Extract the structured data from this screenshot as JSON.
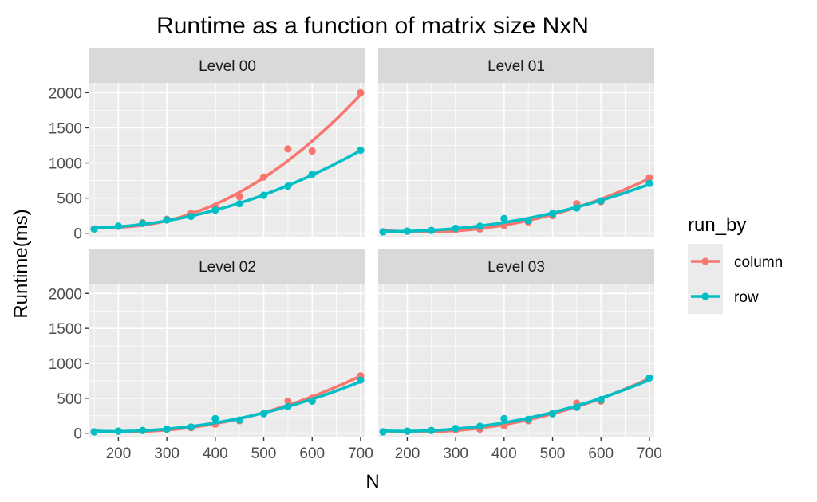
{
  "chart_data": {
    "type": "line",
    "title": "Runtime as a function of matrix size NxN",
    "xlabel": "N",
    "ylabel": "Runtime(ms)",
    "xlim": [
      140,
      710
    ],
    "ylim": [
      -60,
      2140
    ],
    "x_ticks": [
      200,
      300,
      400,
      500,
      600,
      700
    ],
    "y_ticks": [
      0,
      500,
      1000,
      1500,
      2000
    ],
    "grid": true,
    "legend": {
      "title": "run_by",
      "position": "right"
    },
    "facet_layout": [
      2,
      2
    ],
    "facets": [
      {
        "label": "Level 00",
        "series": [
          {
            "name": "column",
            "color": "#F8766D",
            "x": [
              150,
              200,
              250,
              300,
              350,
              400,
              450,
              500,
              550,
              600,
              700
            ],
            "y": [
              60,
              100,
              150,
              200,
              280,
              370,
              520,
              800,
              1200,
              1170,
              2000
            ]
          },
          {
            "name": "row",
            "color": "#00BFC4",
            "x": [
              150,
              200,
              250,
              300,
              350,
              400,
              450,
              500,
              550,
              600,
              700
            ],
            "y": [
              60,
              100,
              140,
              190,
              240,
              330,
              420,
              540,
              670,
              840,
              1180
            ]
          }
        ]
      },
      {
        "label": "Level 01",
        "series": [
          {
            "name": "column",
            "color": "#F8766D",
            "x": [
              150,
              200,
              250,
              300,
              350,
              400,
              450,
              500,
              550,
              600,
              700
            ],
            "y": [
              20,
              30,
              40,
              50,
              60,
              110,
              160,
              250,
              420,
              450,
              790
            ]
          },
          {
            "name": "row",
            "color": "#00BFC4",
            "x": [
              150,
              200,
              250,
              300,
              350,
              400,
              450,
              500,
              550,
              600,
              700
            ],
            "y": [
              20,
              30,
              40,
              70,
              100,
              210,
              180,
              280,
              360,
              460,
              710
            ]
          }
        ]
      },
      {
        "label": "Level 02",
        "series": [
          {
            "name": "column",
            "color": "#F8766D",
            "x": [
              150,
              200,
              250,
              300,
              350,
              400,
              450,
              500,
              550,
              600,
              700
            ],
            "y": [
              20,
              30,
              40,
              60,
              80,
              130,
              180,
              280,
              460,
              500,
              820
            ]
          },
          {
            "name": "row",
            "color": "#00BFC4",
            "x": [
              150,
              200,
              250,
              300,
              350,
              400,
              450,
              500,
              550,
              600,
              700
            ],
            "y": [
              20,
              30,
              40,
              60,
              90,
              210,
              190,
              280,
              380,
              460,
              760
            ]
          }
        ]
      },
      {
        "label": "Level 03",
        "series": [
          {
            "name": "column",
            "color": "#F8766D",
            "x": [
              150,
              200,
              250,
              300,
              350,
              400,
              450,
              500,
              550,
              600,
              700
            ],
            "y": [
              20,
              30,
              40,
              50,
              60,
              110,
              180,
              280,
              430,
              460,
              790
            ]
          },
          {
            "name": "row",
            "color": "#00BFC4",
            "x": [
              150,
              200,
              250,
              300,
              350,
              400,
              450,
              500,
              550,
              600,
              700
            ],
            "y": [
              20,
              30,
              40,
              70,
              100,
              210,
              200,
              280,
              370,
              480,
              790
            ]
          }
        ]
      }
    ]
  }
}
